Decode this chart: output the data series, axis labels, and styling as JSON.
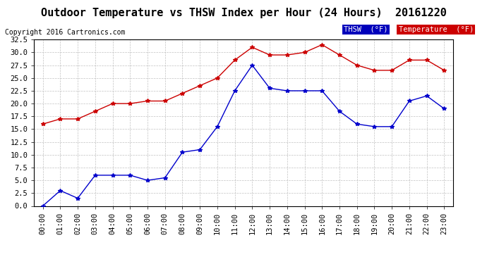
{
  "title": "Outdoor Temperature vs THSW Index per Hour (24 Hours)  20161220",
  "copyright": "Copyright 2016 Cartronics.com",
  "x_labels": [
    "00:00",
    "01:00",
    "02:00",
    "03:00",
    "04:00",
    "05:00",
    "06:00",
    "07:00",
    "08:00",
    "09:00",
    "10:00",
    "11:00",
    "12:00",
    "13:00",
    "14:00",
    "15:00",
    "16:00",
    "17:00",
    "18:00",
    "19:00",
    "20:00",
    "21:00",
    "22:00",
    "23:00"
  ],
  "thsw_values": [
    0.0,
    3.0,
    1.5,
    6.0,
    6.0,
    6.0,
    5.0,
    5.5,
    10.5,
    11.0,
    15.5,
    22.5,
    27.5,
    23.0,
    22.5,
    22.5,
    22.5,
    18.5,
    16.0,
    15.5,
    15.5,
    20.5,
    21.5,
    19.0
  ],
  "temp_values": [
    16.0,
    17.0,
    17.0,
    18.5,
    20.0,
    20.0,
    20.5,
    20.5,
    22.0,
    23.5,
    25.0,
    28.5,
    31.0,
    29.5,
    29.5,
    30.0,
    31.5,
    29.5,
    27.5,
    26.5,
    26.5,
    28.5,
    28.5,
    26.5
  ],
  "thsw_color": "#0000cc",
  "temp_color": "#cc0000",
  "ylim_min": 0.0,
  "ylim_max": 32.5,
  "ytick_step": 2.5,
  "bg_color": "#ffffff",
  "plot_bg_color": "#ffffff",
  "grid_color": "#bbbbbb",
  "legend_thsw_bg": "#0000bb",
  "legend_temp_bg": "#cc0000",
  "legend_text_color": "#ffffff",
  "title_fontsize": 11,
  "copyright_fontsize": 7,
  "tick_fontsize": 7.5
}
